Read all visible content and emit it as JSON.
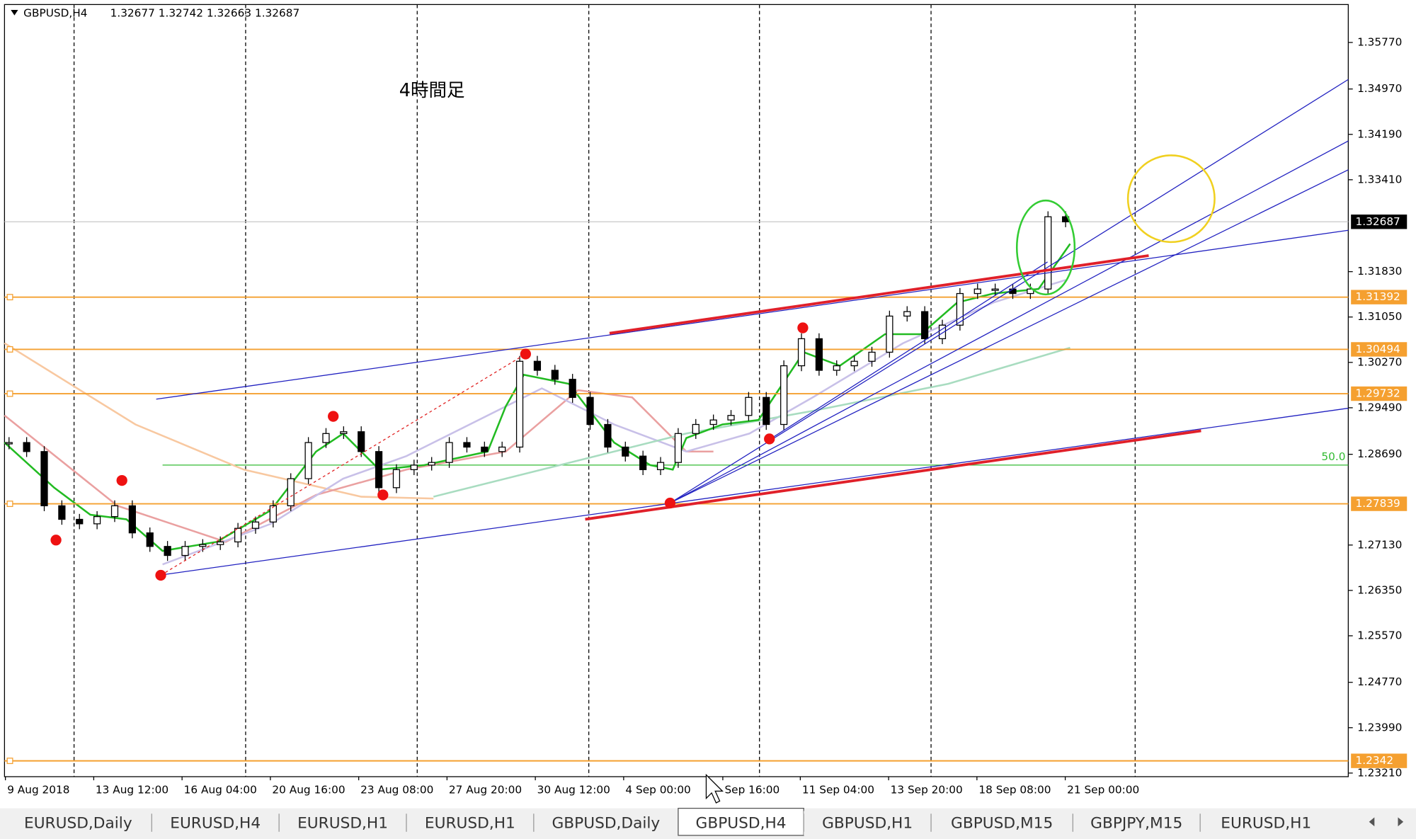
{
  "header": {
    "symbol": "GBPUSD,H4",
    "ohlc": "1.32677 1.32742 1.32663 1.32687"
  },
  "annotation": "4時間足",
  "fib_label": "50.0",
  "chart_data": {
    "type": "candlestick",
    "close": [
      1.28892,
      1.28737,
      1.27805,
      1.27572,
      1.27495,
      1.27619,
      1.27805,
      1.27339,
      1.27106,
      1.26951,
      1.27106,
      1.27138,
      1.27184,
      1.27417,
      1.27526,
      1.27805,
      1.28271,
      1.28892,
      1.29047,
      1.29078,
      1.28737,
      1.28116,
      1.28426,
      1.28504,
      1.2855,
      1.28892,
      1.28814,
      1.28737,
      1.28814,
      1.30289,
      1.30134,
      1.29979,
      1.29668,
      1.29203,
      1.28814,
      1.28659,
      1.28426,
      1.2855,
      1.29047,
      1.29203,
      1.2928,
      1.29358,
      1.29668,
      1.29203,
      1.30212,
      1.30677,
      1.30134,
      1.30212,
      1.30289,
      1.30445,
      1.31066,
      1.31143,
      1.30677,
      1.3091,
      1.31454,
      1.31531,
      1.31531,
      1.31454,
      1.31531,
      1.32774,
      1.32687
    ],
    "up_color": "#ffffff",
    "down_color": "#000000",
    "ylim": [
      1.23148,
      1.36422
    ],
    "yticks": [
      {
        "value": 1.3577,
        "label": "1.35770"
      },
      {
        "value": 1.3497,
        "label": "1.34970"
      },
      {
        "value": 1.3419,
        "label": "1.34190"
      },
      {
        "value": 1.3341,
        "label": "1.33410"
      },
      {
        "value": 1.3183,
        "label": "1.31830"
      },
      {
        "value": 1.3105,
        "label": "1.31050"
      },
      {
        "value": 1.3027,
        "label": "1.30270"
      },
      {
        "value": 1.2949,
        "label": "1.29490"
      },
      {
        "value": 1.2869,
        "label": "1.28690"
      },
      {
        "value": 1.2713,
        "label": "1.27130"
      },
      {
        "value": 1.2635,
        "label": "1.26350"
      },
      {
        "value": 1.2557,
        "label": "1.25570"
      },
      {
        "value": 1.2477,
        "label": "1.24770"
      },
      {
        "value": 1.2399,
        "label": "1.23990"
      },
      {
        "value": 1.2321,
        "label": "1.23210"
      }
    ],
    "x_labels": [
      "9 Aug 2018",
      "13 Aug 12:00",
      "16 Aug 04:00",
      "20 Aug 16:00",
      "23 Aug 08:00",
      "27 Aug 20:00",
      "30 Aug 12:00",
      "4 Sep 00:00",
      "Sep 16:00",
      "11 Sep 04:00",
      "13 Sep 20:00",
      "18 Sep 08:00",
      "21 Sep 00:00"
    ],
    "levels": [
      1.31392,
      1.30494,
      1.29732,
      1.27839,
      1.2342
    ],
    "level_color": "#f5a030",
    "current_price": 1.32687
  },
  "tabs": [
    "EURUSD,Daily",
    "EURUSD,H4",
    "EURUSD,H1",
    "EURUSD,H1",
    "GBPUSD,Daily",
    "GBPUSD,H4",
    "GBPUSD,H1",
    "GBPUSD,M15",
    "GBPJPY,M15",
    "EURUSD,H1"
  ],
  "active_tab": 5
}
